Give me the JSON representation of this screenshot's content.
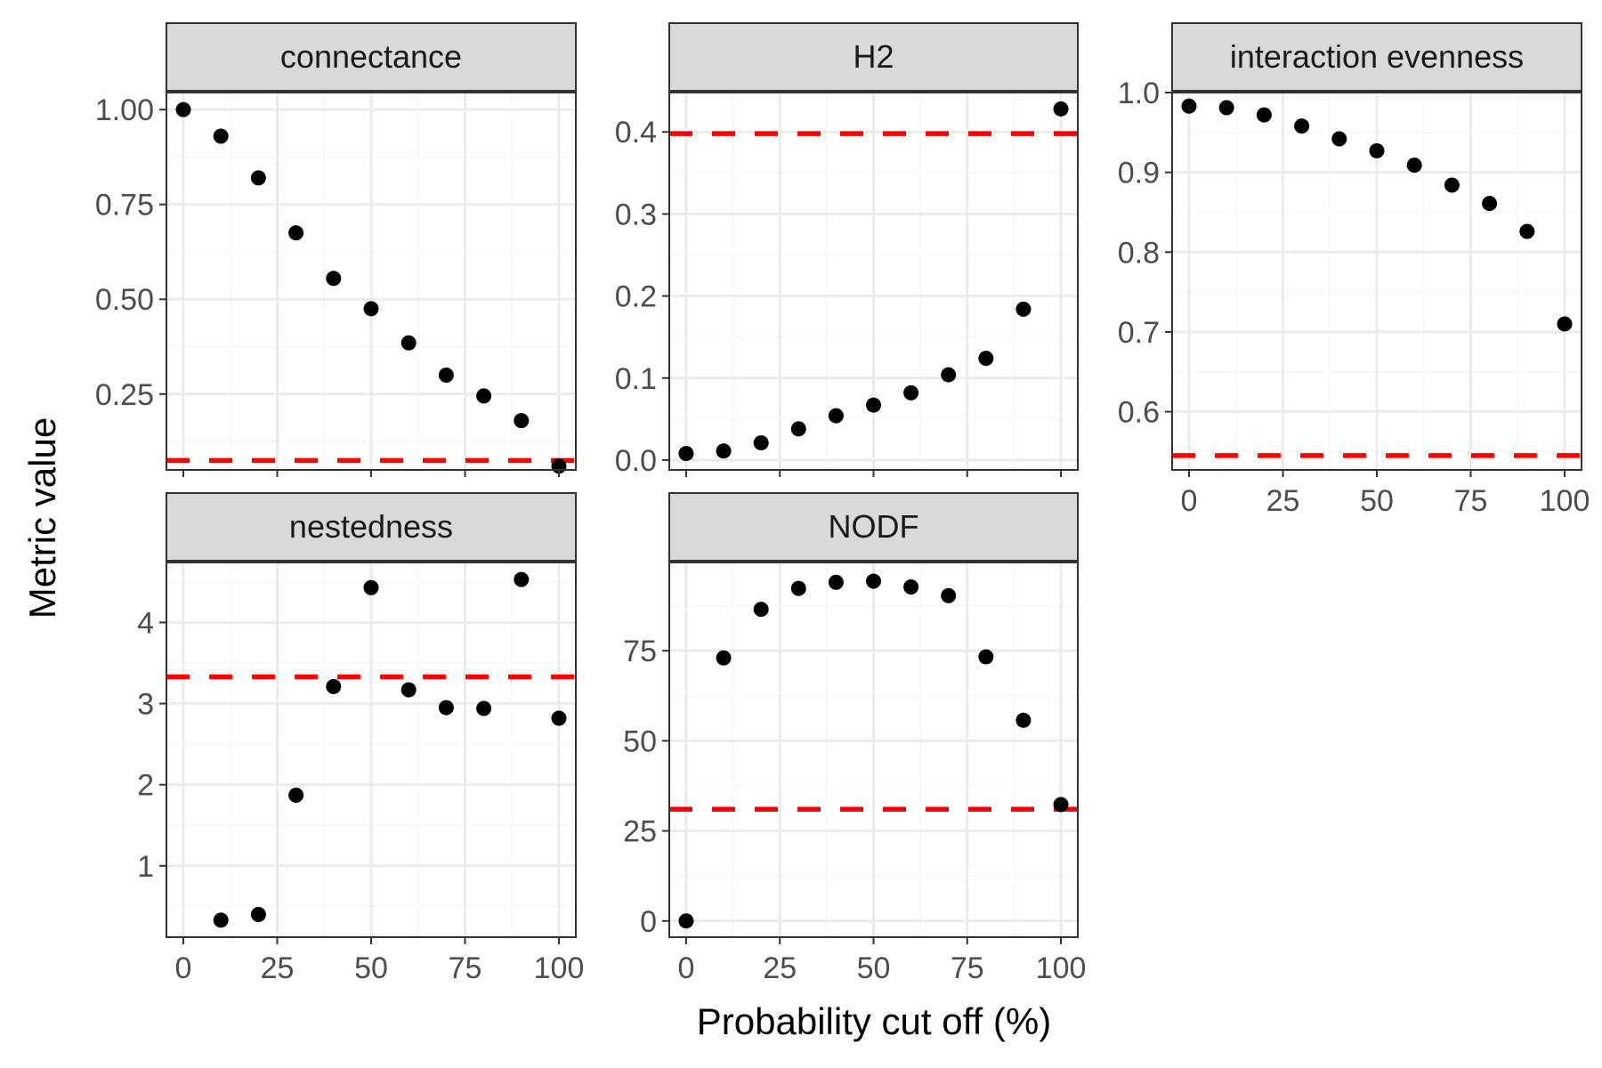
{
  "x_axis_title": "Probability cut off (%)",
  "y_axis_title": "Metric value",
  "colors": {
    "points": "#000000",
    "reference_line": "#ff0000",
    "strip_fill": "#d9d9d9",
    "panel_border": "#333333",
    "grid_major": "#ebebeb",
    "grid_minor": "#f5f5f5"
  },
  "chart_data": [
    {
      "type": "scatter",
      "title": "connectance",
      "x": [
        0,
        10,
        20,
        30,
        40,
        50,
        60,
        70,
        80,
        90,
        100
      ],
      "y": [
        1.0,
        0.93,
        0.82,
        0.675,
        0.555,
        0.475,
        0.385,
        0.3,
        0.245,
        0.18,
        0.06
      ],
      "reference_line": 0.075,
      "xlim": [
        -4.5,
        104.5
      ],
      "ylim": [
        0.05,
        1.045
      ],
      "xticks": [
        0,
        25,
        50,
        75,
        100
      ],
      "yticks": [
        0.25,
        0.5,
        0.75,
        1.0
      ],
      "ytick_labels": [
        "0.25",
        "0.50",
        "0.75",
        "1.00"
      ],
      "show_x_tick_labels": false
    },
    {
      "type": "scatter",
      "title": "H2",
      "x": [
        0,
        10,
        20,
        30,
        40,
        50,
        60,
        70,
        80,
        90,
        100
      ],
      "y": [
        0.008,
        0.011,
        0.021,
        0.038,
        0.054,
        0.067,
        0.082,
        0.104,
        0.124,
        0.184,
        0.428
      ],
      "reference_line": 0.398,
      "xlim": [
        -4.5,
        104.5
      ],
      "ylim": [
        -0.012,
        0.448
      ],
      "xticks": [
        0,
        25,
        50,
        75,
        100
      ],
      "yticks": [
        0.0,
        0.1,
        0.2,
        0.3,
        0.4
      ],
      "ytick_labels": [
        "0.0",
        "0.1",
        "0.2",
        "0.3",
        "0.4"
      ],
      "show_x_tick_labels": false
    },
    {
      "type": "scatter",
      "title": "interaction evenness",
      "x": [
        0,
        10,
        20,
        30,
        40,
        50,
        60,
        70,
        80,
        90,
        100
      ],
      "y": [
        0.983,
        0.981,
        0.972,
        0.958,
        0.942,
        0.927,
        0.909,
        0.884,
        0.861,
        0.826,
        0.71
      ],
      "reference_line": 0.545,
      "xlim": [
        -4.5,
        104.5
      ],
      "ylim": [
        0.527,
        1.0
      ],
      "xticks": [
        0,
        25,
        50,
        75,
        100
      ],
      "yticks": [
        0.6,
        0.7,
        0.8,
        0.9,
        1.0
      ],
      "ytick_labels": [
        "0.6",
        "0.7",
        "0.8",
        "0.9",
        "1.0"
      ],
      "show_x_tick_labels": true
    },
    {
      "type": "scatter",
      "title": "nestedness",
      "x": [
        0,
        10,
        20,
        30,
        40,
        50,
        60,
        70,
        80,
        90,
        100
      ],
      "y": [
        null,
        0.33,
        0.4,
        1.87,
        3.21,
        4.43,
        3.17,
        2.95,
        2.94,
        4.53,
        2.82
      ],
      "reference_line": 3.33,
      "xlim": [
        -4.5,
        104.5
      ],
      "ylim": [
        0.12,
        4.74
      ],
      "xticks": [
        0,
        25,
        50,
        75,
        100
      ],
      "yticks": [
        1,
        2,
        3,
        4
      ],
      "ytick_labels": [
        "1",
        "2",
        "3",
        "4"
      ],
      "show_x_tick_labels": true
    },
    {
      "type": "scatter",
      "title": "NODF",
      "x": [
        0,
        10,
        20,
        30,
        40,
        50,
        60,
        70,
        80,
        90,
        100
      ],
      "y": [
        0,
        73,
        86.5,
        92.3,
        94,
        94.3,
        92.7,
        90.3,
        73.3,
        55.7,
        32.3
      ],
      "reference_line": 31,
      "xlim": [
        -4.5,
        104.5
      ],
      "ylim": [
        -4.5,
        99.5
      ],
      "xticks": [
        0,
        25,
        50,
        75,
        100
      ],
      "yticks": [
        0,
        25,
        50,
        75
      ],
      "ytick_labels": [
        "0",
        "25",
        "50",
        "75"
      ],
      "show_x_tick_labels": true
    }
  ]
}
